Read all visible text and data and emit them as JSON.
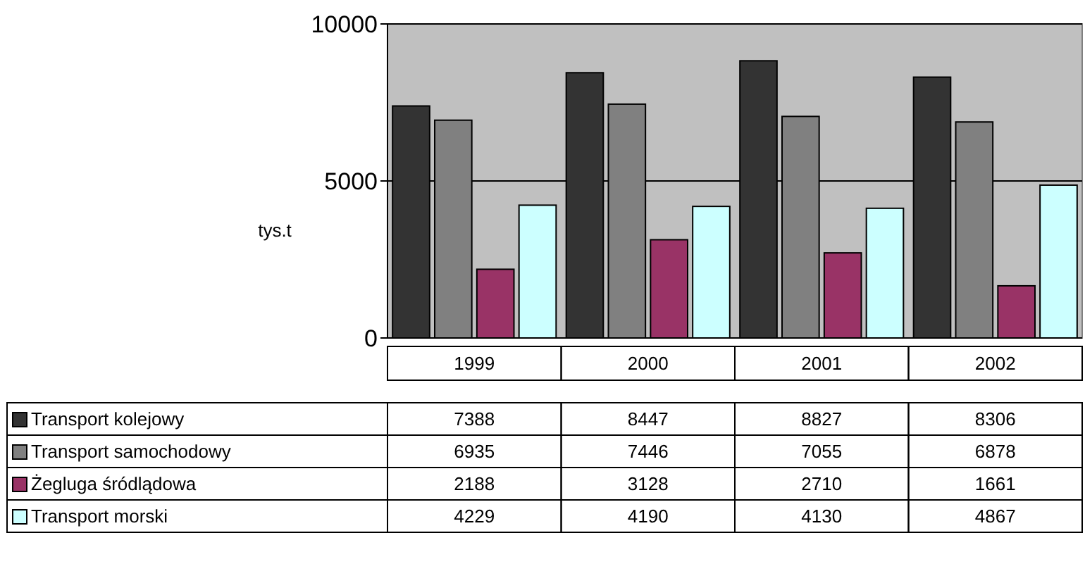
{
  "chart_data": {
    "type": "bar",
    "ylabel": "tys.t",
    "categories": [
      "1999",
      "2000",
      "2001",
      "2002"
    ],
    "series": [
      {
        "name": "Transport kolejowy",
        "color": "#333333",
        "values": [
          7388,
          8447,
          8827,
          8306
        ]
      },
      {
        "name": "Transport samochodowy",
        "color": "#808080",
        "values": [
          6935,
          7446,
          7055,
          6878
        ]
      },
      {
        "name": "Żegluga śródlądowa",
        "color": "#993366",
        "values": [
          2188,
          3128,
          2710,
          1661
        ]
      },
      {
        "name": "Transport morski",
        "color": "#ccffff",
        "values": [
          4229,
          4190,
          4130,
          4867
        ]
      }
    ],
    "ylim": [
      0,
      10000
    ],
    "yticks": [
      0,
      5000,
      10000
    ],
    "grid": "y",
    "data_labels": true,
    "legend": "bottom"
  }
}
